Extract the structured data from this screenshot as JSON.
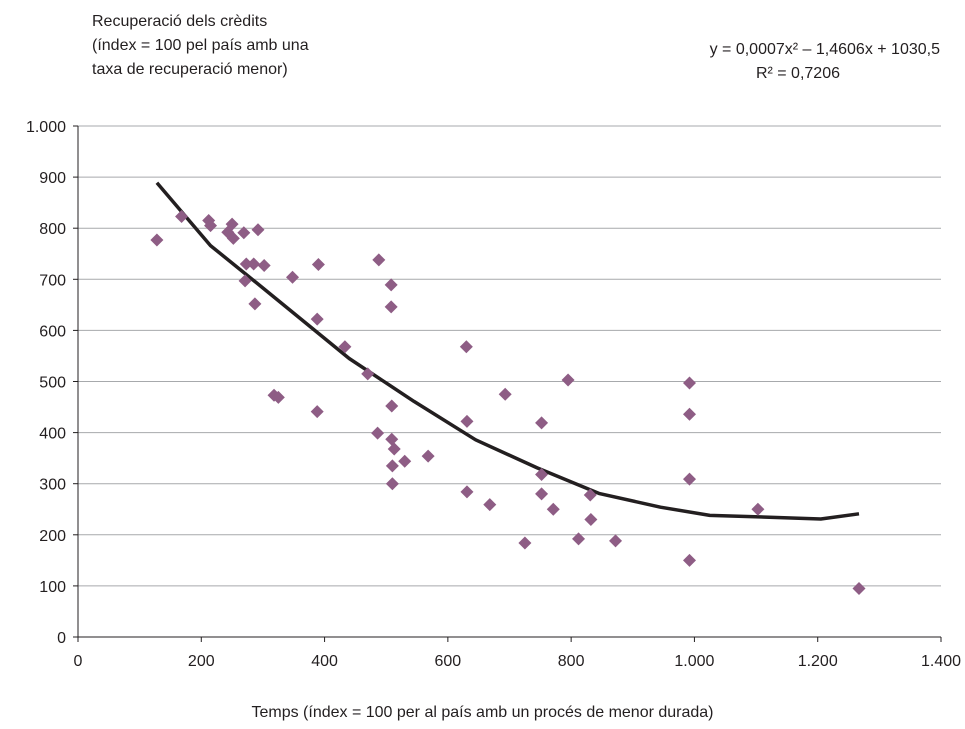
{
  "chart_data": {
    "type": "scatter",
    "ylabel_lines": [
      "Recuperació dels crèdits",
      "(índex = 100 pel país amb una",
      "taxa de recuperació menor)"
    ],
    "xlabel": "Temps (índex = 100 per al país amb un procés de menor durada)",
    "equation": "y = 0,0007x² – 1,4606x + 1030,5",
    "r_squared": "R² = 0,7206",
    "xlim": [
      0,
      1400
    ],
    "ylim": [
      0,
      1000
    ],
    "x_ticks": [
      0,
      200,
      400,
      600,
      800,
      1000,
      1200,
      1400
    ],
    "x_tick_labels": [
      "0",
      "200",
      "400",
      "600",
      "800",
      "1.000",
      "1.200",
      "1.400"
    ],
    "y_ticks": [
      0,
      100,
      200,
      300,
      400,
      500,
      600,
      700,
      800,
      900,
      1000
    ],
    "y_tick_labels": [
      "0",
      "100",
      "200",
      "300",
      "400",
      "500",
      "600",
      "700",
      "800",
      "900",
      "1.000"
    ],
    "grid": "horizontal",
    "colors": {
      "points": "#8e5d85",
      "trend": "#231f20",
      "grid": "#a7a9ac"
    },
    "points": [
      [
        128,
        777
      ],
      [
        168,
        823
      ],
      [
        212,
        815
      ],
      [
        215,
        805
      ],
      [
        243,
        792
      ],
      [
        250,
        808
      ],
      [
        252,
        780
      ],
      [
        269,
        791
      ],
      [
        271,
        697
      ],
      [
        273,
        730
      ],
      [
        285,
        730
      ],
      [
        287,
        652
      ],
      [
        292,
        797
      ],
      [
        302,
        727
      ],
      [
        318,
        473
      ],
      [
        325,
        469
      ],
      [
        348,
        704
      ],
      [
        388,
        622
      ],
      [
        388,
        441
      ],
      [
        390,
        729
      ],
      [
        433,
        568
      ],
      [
        470,
        515
      ],
      [
        486,
        399
      ],
      [
        488,
        738
      ],
      [
        508,
        689
      ],
      [
        508,
        646
      ],
      [
        509,
        452
      ],
      [
        509,
        387
      ],
      [
        510,
        335
      ],
      [
        510,
        300
      ],
      [
        513,
        368
      ],
      [
        530,
        344
      ],
      [
        568,
        354
      ],
      [
        630,
        568
      ],
      [
        631,
        422
      ],
      [
        631,
        284
      ],
      [
        668,
        259
      ],
      [
        693,
        475
      ],
      [
        725,
        184
      ],
      [
        752,
        419
      ],
      [
        752,
        318
      ],
      [
        752,
        280
      ],
      [
        771,
        250
      ],
      [
        795,
        503
      ],
      [
        812,
        192
      ],
      [
        831,
        278
      ],
      [
        832,
        230
      ],
      [
        872,
        188
      ],
      [
        992,
        497
      ],
      [
        992,
        436
      ],
      [
        992,
        309
      ],
      [
        992,
        150
      ],
      [
        1103,
        250
      ],
      [
        1267,
        95
      ]
    ],
    "trendline": [
      [
        128,
        889
      ],
      [
        215,
        766
      ],
      [
        300,
        683
      ],
      [
        440,
        545
      ],
      [
        545,
        461
      ],
      [
        645,
        386
      ],
      [
        745,
        331
      ],
      [
        845,
        281
      ],
      [
        945,
        254
      ],
      [
        1025,
        238
      ],
      [
        1105,
        235
      ],
      [
        1205,
        231
      ],
      [
        1267,
        241
      ]
    ]
  }
}
